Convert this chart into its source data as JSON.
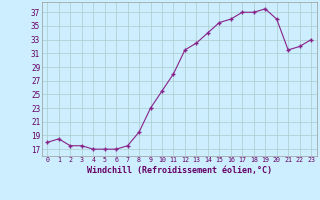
{
  "x": [
    0,
    1,
    2,
    3,
    4,
    5,
    6,
    7,
    8,
    9,
    10,
    11,
    12,
    13,
    14,
    15,
    16,
    17,
    18,
    19,
    20,
    21,
    22,
    23
  ],
  "y": [
    18,
    18.5,
    17.5,
    17.5,
    17,
    17,
    17,
    17.5,
    19.5,
    23,
    25.5,
    28,
    31.5,
    32.5,
    34,
    35.5,
    36,
    37,
    37,
    37.5,
    36,
    31.5,
    32,
    33
  ],
  "line_color": "#882288",
  "marker_color": "#882288",
  "bg_color": "#cceeff",
  "grid_color": "#aacccc",
  "xlabel": "Windchill (Refroidissement éolien,°C)",
  "ylabel_ticks": [
    17,
    19,
    21,
    23,
    25,
    27,
    29,
    31,
    33,
    35,
    37
  ],
  "xtick_labels": [
    "0",
    "1",
    "2",
    "3",
    "4",
    "5",
    "6",
    "7",
    "8",
    "9",
    "10",
    "11",
    "12",
    "13",
    "14",
    "15",
    "16",
    "17",
    "18",
    "19",
    "20",
    "21",
    "22",
    "23"
  ],
  "ylim": [
    16.0,
    38.5
  ],
  "xlim": [
    -0.5,
    23.5
  ]
}
